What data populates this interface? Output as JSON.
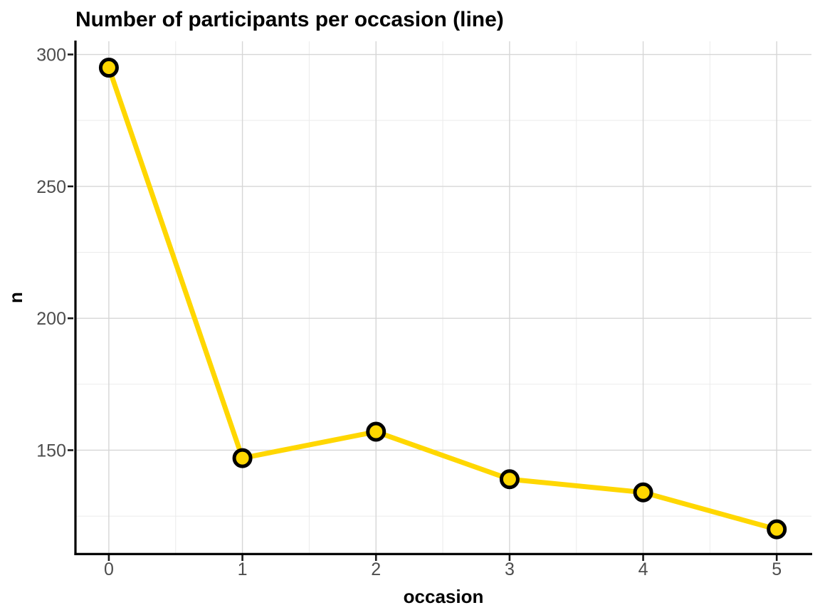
{
  "chart_data": {
    "type": "line",
    "title": "Number of participants per occasion (line)",
    "xlabel": "occasion",
    "ylabel": "n",
    "x": [
      0,
      1,
      2,
      3,
      4,
      5
    ],
    "series": [
      {
        "name": "n",
        "values": [
          295,
          147,
          157,
          139,
          134,
          120
        ]
      }
    ],
    "x_ticks": [
      0,
      1,
      2,
      3,
      4,
      5
    ],
    "y_ticks": [
      150,
      200,
      250,
      300
    ],
    "xlim": [
      -0.25,
      5.26
    ],
    "ylim": [
      111,
      305
    ],
    "grid": "major and minor gridlines, light gray on white",
    "legend_position": "none",
    "colors": {
      "line": "#FFD700",
      "point_fill": "#FFD700",
      "point_stroke": "#000000",
      "grid_major": "#D6D6D6",
      "grid_minor": "#EBEBEB",
      "axis_line": "#000000",
      "tick_mark": "#1A1A1A",
      "tick_label": "#4D4D4D",
      "title": "#000000"
    }
  }
}
